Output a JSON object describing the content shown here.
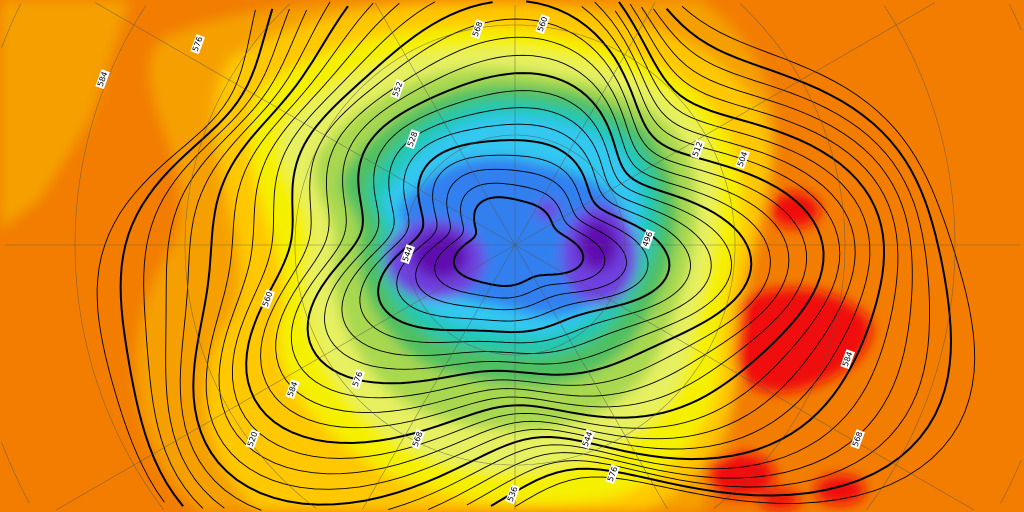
{
  "map": {
    "type": "polar stereographic geopotential height chart, Northern Hemisphere",
    "colors": {
      "background_orange": "#f27d00",
      "light_orange": "#f5a000",
      "yellow_orange": "#ffc800",
      "yellow": "#f5f000",
      "light_yellow": "#e6f060",
      "light_green": "#a8d850",
      "green": "#50c060",
      "teal": "#20c8b0",
      "cyan": "#30c8f0",
      "blue": "#3080f0",
      "violet": "#7040e0",
      "purple": "#6010b0",
      "red": "#f01010",
      "contour": "#000000"
    },
    "contour_labels": [
      "584",
      "576",
      "568",
      "560",
      "552",
      "544",
      "528",
      "512",
      "504",
      "496",
      "568",
      "576",
      "584",
      "560",
      "544",
      "520",
      "536",
      "576",
      "584",
      "568"
    ]
  }
}
